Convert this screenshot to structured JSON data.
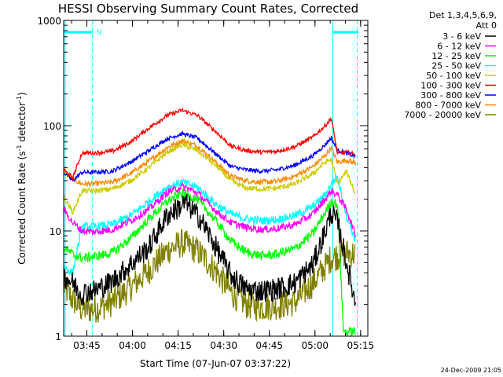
{
  "chart_data": {
    "type": "line",
    "title": "HESSI Observing Summary Count Rates, Corrected",
    "xlabel": "Start Time (07-Jun-07 03:37:22)",
    "ylabel_main": "Corrected Count Rate (s",
    "ylabel_sup1": "-1",
    "ylabel_mid": " detector",
    "ylabel_sup2": "-1",
    "ylabel_end": ")",
    "y_scale": "log",
    "ylim": [
      1,
      1000
    ],
    "xlim_minutes": [
      0,
      100
    ],
    "x_ticks": [
      {
        "minute": 7.63,
        "label": "03:45"
      },
      {
        "minute": 22.63,
        "label": "04:00"
      },
      {
        "minute": 37.63,
        "label": "04:15"
      },
      {
        "minute": 52.63,
        "label": "04:30"
      },
      {
        "minute": 67.63,
        "label": "04:45"
      },
      {
        "minute": 82.63,
        "label": "05:00"
      },
      {
        "minute": 97.63,
        "label": "05:15"
      }
    ],
    "y_ticks": [
      {
        "value": 1,
        "label": "1"
      },
      {
        "value": 10,
        "label": "10"
      },
      {
        "value": 100,
        "label": "100"
      },
      {
        "value": 1000,
        "label": "1000"
      }
    ],
    "legend_header": [
      "Det 1,3,4,5,6,9,",
      "Att 0"
    ],
    "legend_position": "right",
    "night_markers": {
      "start_bar": [
        0,
        9.5
      ],
      "end_bar": [
        88.5,
        97
      ],
      "dashed_lines": [
        9.5,
        96.5
      ],
      "solid_lines": [
        0.5,
        88.5
      ],
      "n_label": "N",
      "color": "#00ffff"
    },
    "series": [
      {
        "name": "3 - 6 keV",
        "color": "#000000",
        "points": [
          [
            0,
            3.8
          ],
          [
            3,
            3.2
          ],
          [
            6,
            2.5
          ],
          [
            8,
            2.7
          ],
          [
            10,
            2.7
          ],
          [
            16,
            3.3
          ],
          [
            22,
            4.8
          ],
          [
            28,
            7
          ],
          [
            34,
            14
          ],
          [
            40,
            18.5
          ],
          [
            45,
            13
          ],
          [
            50,
            7
          ],
          [
            55,
            3.8
          ],
          [
            60,
            2.8
          ],
          [
            65,
            2.7
          ],
          [
            70,
            2.8
          ],
          [
            76,
            3.2
          ],
          [
            82,
            4.8
          ],
          [
            86,
            10
          ],
          [
            88,
            15
          ],
          [
            90,
            12
          ],
          [
            93,
            5
          ],
          [
            96,
            2
          ]
        ]
      },
      {
        "name": "6 - 12 keV",
        "color": "#ff00ff",
        "points": [
          [
            0,
            16
          ],
          [
            3,
            12
          ],
          [
            6,
            10
          ],
          [
            10,
            9.8
          ],
          [
            16,
            10.3
          ],
          [
            22,
            12.5
          ],
          [
            28,
            16
          ],
          [
            34,
            23
          ],
          [
            39,
            26.5
          ],
          [
            44,
            23
          ],
          [
            50,
            15.5
          ],
          [
            55,
            12
          ],
          [
            60,
            10.8
          ],
          [
            65,
            10.3
          ],
          [
            70,
            10.5
          ],
          [
            76,
            11.5
          ],
          [
            82,
            14.5
          ],
          [
            86,
            20
          ],
          [
            88,
            24
          ],
          [
            90,
            22
          ],
          [
            93,
            16
          ],
          [
            96,
            9
          ]
        ]
      },
      {
        "name": "12 - 25 keV",
        "color": "#00ff00",
        "points": [
          [
            0,
            7
          ],
          [
            3,
            6
          ],
          [
            6,
            5.5
          ],
          [
            10,
            5.7
          ],
          [
            16,
            6.2
          ],
          [
            22,
            8.5
          ],
          [
            28,
            13
          ],
          [
            34,
            19
          ],
          [
            39,
            23
          ],
          [
            44,
            20
          ],
          [
            50,
            12.5
          ],
          [
            55,
            8
          ],
          [
            60,
            6.3
          ],
          [
            65,
            5.8
          ],
          [
            70,
            6
          ],
          [
            76,
            6.8
          ],
          [
            82,
            9.5
          ],
          [
            86,
            15
          ],
          [
            88,
            19
          ],
          [
            90,
            18
          ],
          [
            92,
            1.1
          ],
          [
            96,
            1.1
          ]
        ]
      },
      {
        "name": "25 - 50 keV",
        "color": "#00ffff",
        "points": [
          [
            0,
            4.5
          ],
          [
            3,
            4
          ],
          [
            6,
            11
          ],
          [
            10,
            11
          ],
          [
            16,
            11.5
          ],
          [
            22,
            14
          ],
          [
            28,
            19
          ],
          [
            34,
            26
          ],
          [
            39,
            29
          ],
          [
            44,
            26
          ],
          [
            50,
            18
          ],
          [
            55,
            14.5
          ],
          [
            60,
            13
          ],
          [
            65,
            12.5
          ],
          [
            70,
            12.8
          ],
          [
            76,
            14
          ],
          [
            82,
            17
          ],
          [
            86,
            22
          ],
          [
            88,
            28
          ],
          [
            90,
            33
          ],
          [
            93,
            14
          ],
          [
            96,
            8
          ]
        ]
      },
      {
        "name": "50 - 100 keV",
        "color": "#cccc00",
        "points": [
          [
            0,
            21
          ],
          [
            3,
            15
          ],
          [
            6,
            24
          ],
          [
            10,
            24
          ],
          [
            16,
            25
          ],
          [
            22,
            30
          ],
          [
            28,
            40
          ],
          [
            34,
            56
          ],
          [
            39,
            66
          ],
          [
            44,
            58
          ],
          [
            50,
            42
          ],
          [
            55,
            30
          ],
          [
            60,
            25.5
          ],
          [
            65,
            25
          ],
          [
            70,
            25.5
          ],
          [
            76,
            28
          ],
          [
            82,
            35
          ],
          [
            86,
            45
          ],
          [
            88,
            48
          ],
          [
            90,
            28
          ],
          [
            93,
            37
          ],
          [
            96,
            22
          ]
        ]
      },
      {
        "name": "100 - 300 keV",
        "color": "#ff0000",
        "points": [
          [
            0,
            38
          ],
          [
            3,
            32
          ],
          [
            6,
            55
          ],
          [
            10,
            55
          ],
          [
            16,
            57
          ],
          [
            22,
            70
          ],
          [
            28,
            95
          ],
          [
            34,
            125
          ],
          [
            39,
            140
          ],
          [
            44,
            125
          ],
          [
            50,
            88
          ],
          [
            55,
            64
          ],
          [
            60,
            58
          ],
          [
            65,
            56
          ],
          [
            70,
            57
          ],
          [
            76,
            63
          ],
          [
            82,
            78
          ],
          [
            86,
            100
          ],
          [
            88,
            118
          ],
          [
            90,
            55
          ],
          [
            93,
            56
          ],
          [
            96,
            53
          ]
        ]
      },
      {
        "name": "300 - 800 keV",
        "color": "#0000ff",
        "points": [
          [
            0,
            36
          ],
          [
            3,
            30
          ],
          [
            6,
            36
          ],
          [
            10,
            36
          ],
          [
            16,
            37
          ],
          [
            22,
            45
          ],
          [
            28,
            58
          ],
          [
            34,
            75
          ],
          [
            39,
            84
          ],
          [
            44,
            76
          ],
          [
            50,
            54
          ],
          [
            55,
            41
          ],
          [
            60,
            38
          ],
          [
            65,
            37
          ],
          [
            70,
            38
          ],
          [
            76,
            42
          ],
          [
            82,
            52
          ],
          [
            86,
            66
          ],
          [
            88,
            77
          ],
          [
            90,
            58
          ],
          [
            93,
            55
          ],
          [
            96,
            51
          ]
        ]
      },
      {
        "name": "800 - 7000 keV",
        "color": "#ff8800",
        "points": [
          [
            0,
            38
          ],
          [
            3,
            31
          ],
          [
            6,
            28
          ],
          [
            10,
            28
          ],
          [
            16,
            29
          ],
          [
            22,
            35
          ],
          [
            28,
            46
          ],
          [
            34,
            62
          ],
          [
            39,
            72
          ],
          [
            44,
            64
          ],
          [
            50,
            45
          ],
          [
            55,
            33
          ],
          [
            60,
            30
          ],
          [
            65,
            29
          ],
          [
            70,
            29.5
          ],
          [
            76,
            33
          ],
          [
            82,
            41
          ],
          [
            86,
            52
          ],
          [
            88,
            62
          ],
          [
            90,
            45
          ],
          [
            93,
            47
          ],
          [
            96,
            44
          ]
        ]
      },
      {
        "name": "7000 - 20000 keV",
        "color": "#808000",
        "points": [
          [
            0,
            3
          ],
          [
            3,
            2.2
          ],
          [
            6,
            1.8
          ],
          [
            10,
            1.8
          ],
          [
            16,
            2.1
          ],
          [
            22,
            2.9
          ],
          [
            28,
            4.2
          ],
          [
            34,
            6.5
          ],
          [
            39,
            7.7
          ],
          [
            44,
            6.5
          ],
          [
            50,
            4.2
          ],
          [
            55,
            2.6
          ],
          [
            60,
            2
          ],
          [
            65,
            1.9
          ],
          [
            70,
            1.95
          ],
          [
            76,
            2.1
          ],
          [
            82,
            3.2
          ],
          [
            86,
            4.6
          ],
          [
            88,
            5.6
          ],
          [
            90,
            5.8
          ],
          [
            93,
            6.2
          ],
          [
            96,
            6
          ]
        ]
      }
    ]
  },
  "timestamp": "24-Dec-2009 21:05"
}
